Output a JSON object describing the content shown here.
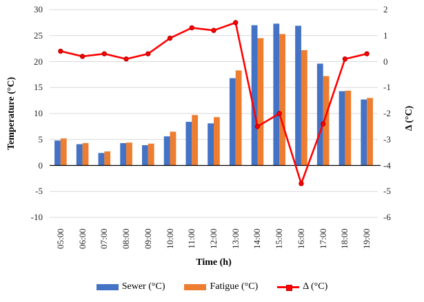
{
  "chart_data": {
    "type": "combo-bar-line",
    "categories": [
      "05:00",
      "06:00",
      "07:00",
      "08:00",
      "09:00",
      "10:00",
      "11:00",
      "12:00",
      "13:00",
      "14:00",
      "15:00",
      "16:00",
      "17:00",
      "18:00",
      "19:00"
    ],
    "series": [
      {
        "name": "Sewer (°C)",
        "type": "bar",
        "axis": "left",
        "color": "#4472C4",
        "values": [
          4.8,
          4.1,
          2.4,
          4.3,
          3.9,
          5.6,
          8.4,
          8.1,
          16.8,
          27.0,
          27.3,
          26.9,
          19.6,
          14.3,
          12.7
        ]
      },
      {
        "name": "Fatigue (°C)",
        "type": "bar",
        "axis": "left",
        "color": "#ED7D31",
        "values": [
          5.2,
          4.3,
          2.7,
          4.4,
          4.2,
          6.5,
          9.7,
          9.3,
          18.3,
          24.5,
          25.3,
          22.2,
          17.2,
          14.4,
          13.0
        ]
      },
      {
        "name": "Δ (°C)",
        "type": "line",
        "axis": "right",
        "color": "#FF0000",
        "marker_border": "#C00000",
        "values": [
          0.4,
          0.2,
          0.3,
          0.1,
          0.3,
          0.9,
          1.3,
          1.2,
          1.5,
          -2.5,
          -2.0,
          -4.7,
          -2.4,
          0.1,
          0.3
        ]
      }
    ],
    "x_axis": {
      "title": "Time (h)"
    },
    "left_axis": {
      "title": "Temperature (°C)",
      "min": -10,
      "max": 30,
      "step": 5,
      "tick_labels": [
        "30",
        "25",
        "20",
        "15",
        "10",
        "5",
        "0",
        "-5",
        "-10"
      ]
    },
    "right_axis": {
      "title": "Δ (°C)",
      "min": -6,
      "max": 2,
      "step": 1,
      "tick_labels": [
        "2",
        "1",
        "0",
        "-1",
        "-2",
        "-3",
        "-4",
        "-5",
        "-6"
      ]
    },
    "grid": true,
    "legend_position": "bottom",
    "colors": {
      "gridline": "#D9D9D9",
      "axis_line": "#000000",
      "background": "#FFFFFF"
    }
  }
}
